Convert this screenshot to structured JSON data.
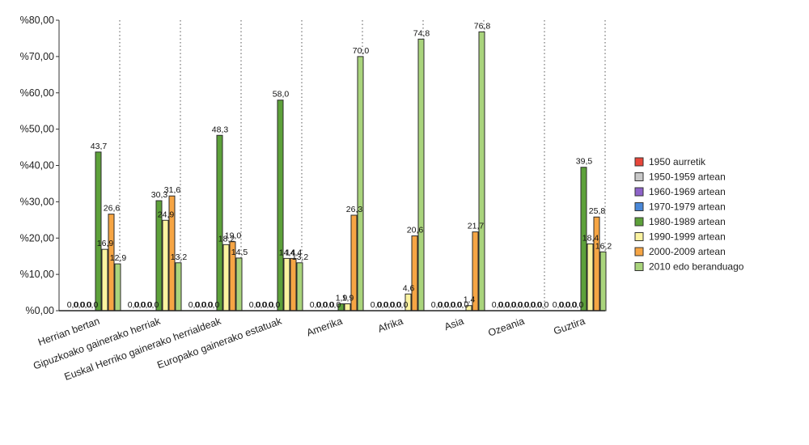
{
  "chart_data": {
    "type": "bar",
    "categories": [
      "Herrian bertan",
      "Gipuzkoako gainerako herriak",
      "Euskal Herriko gainerako herrialdeak",
      "Europako gainerako estatuak",
      "Amerika",
      "Afrika",
      "Asia",
      "Ozeania",
      "Guztira"
    ],
    "y_ticks": [
      "%0,00",
      "%10,00",
      "%20,00",
      "%30,00",
      "%40,00",
      "%50,00",
      "%60,00",
      "%70,00",
      "%80,00"
    ],
    "ylim": [
      0,
      80
    ],
    "grid": "vertical dotted separators between categories",
    "legend_position": "right",
    "series": [
      {
        "name": "1950 aurretik",
        "color": "#e8463a",
        "values": [
          0,
          0,
          0,
          0,
          0,
          0,
          0,
          0,
          0
        ],
        "labels": [
          "0,0",
          "0,0",
          "0,0",
          "0,0",
          "0,0",
          "0,0",
          "0,0",
          "0,0",
          "0,0"
        ]
      },
      {
        "name": "1950-1959 artean",
        "color": "#c8c8c8",
        "values": [
          0,
          0,
          0,
          0,
          0,
          0,
          0,
          0,
          0
        ],
        "labels": [
          "0,0",
          "0,0",
          "0,0",
          "0,0",
          "0,0",
          "0,0",
          "0,0",
          "0,0",
          "0,0"
        ]
      },
      {
        "name": "1960-1969 artean",
        "color": "#8e63c9",
        "values": [
          0,
          0,
          0,
          0,
          0,
          0,
          0,
          0,
          0
        ],
        "labels": [
          "0,0",
          "0,0",
          "0,0",
          "0,0",
          "0,0",
          "0,0",
          "0,0",
          "0,0",
          "0,0"
        ]
      },
      {
        "name": "1970-1979 artean",
        "color": "#4a88d8",
        "values": [
          0,
          0,
          0,
          0,
          0,
          0,
          0,
          0,
          0
        ],
        "labels": [
          "0,0",
          "0,0",
          "0,0",
          "0,0",
          "0,0",
          "0,0",
          "0,0",
          "0,0",
          "0,0"
        ]
      },
      {
        "name": "1980-1989 artean",
        "color": "#5da13a",
        "values": [
          43.7,
          30.3,
          48.3,
          58.0,
          1.9,
          0,
          0,
          0,
          39.5
        ],
        "labels": [
          "43,7",
          "30,3",
          "48,3",
          "58,0",
          "1,9",
          "0,0",
          "0,0",
          "0,0",
          "39,5"
        ]
      },
      {
        "name": "1990-1999 artean",
        "color": "#fbf3a0",
        "values": [
          16.9,
          24.9,
          18.2,
          14.4,
          1.9,
          4.6,
          1.4,
          0,
          18.4
        ],
        "labels": [
          "16,9",
          "24,9",
          "18,2",
          "14,4",
          "1,9",
          "4,6",
          "1,4",
          "0,0",
          "18,4"
        ]
      },
      {
        "name": "2000-2009 artean",
        "color": "#f6a544",
        "values": [
          26.6,
          31.6,
          19.0,
          14.4,
          26.3,
          20.6,
          21.7,
          0,
          25.8
        ],
        "labels": [
          "26,6",
          "31,6",
          "19,0",
          "14,4",
          "26,3",
          "20,6",
          "21,7",
          "0,0",
          "25,8"
        ]
      },
      {
        "name": "2010 edo beranduago",
        "color": "#a9d47c",
        "values": [
          12.9,
          13.2,
          14.5,
          13.2,
          70.0,
          74.8,
          76.8,
          0,
          16.2
        ],
        "labels": [
          "12,9",
          "13,2",
          "14,5",
          "13,2",
          "70,0",
          "74,8",
          "76,8",
          "0,0",
          "16,2"
        ]
      }
    ]
  }
}
